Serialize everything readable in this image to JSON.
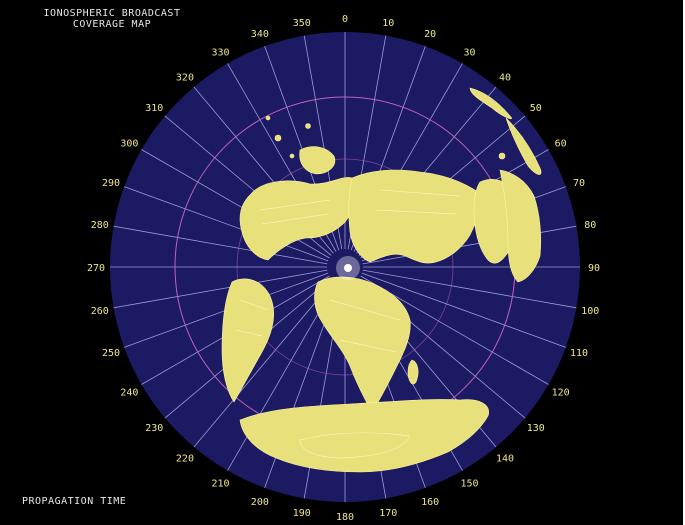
{
  "title_line1": "IONOSPHERIC BROADCAST",
  "title_line2": "COVERAGE MAP",
  "footer": "PROPAGATION TIME",
  "azimuth_labels": [
    {
      "deg": 0,
      "text": "0"
    },
    {
      "deg": 10,
      "text": "10"
    },
    {
      "deg": 20,
      "text": "20"
    },
    {
      "deg": 30,
      "text": "30"
    },
    {
      "deg": 40,
      "text": "40"
    },
    {
      "deg": 50,
      "text": "50"
    },
    {
      "deg": 60,
      "text": "60"
    },
    {
      "deg": 70,
      "text": "70"
    },
    {
      "deg": 80,
      "text": "80"
    },
    {
      "deg": 90,
      "text": "90"
    },
    {
      "deg": 100,
      "text": "100"
    },
    {
      "deg": 110,
      "text": "110"
    },
    {
      "deg": 120,
      "text": "120"
    },
    {
      "deg": 130,
      "text": "130"
    },
    {
      "deg": 140,
      "text": "140"
    },
    {
      "deg": 150,
      "text": "150"
    },
    {
      "deg": 160,
      "text": "160"
    },
    {
      "deg": 170,
      "text": "170"
    },
    {
      "deg": 180,
      "text": "180"
    },
    {
      "deg": 190,
      "text": "190"
    },
    {
      "deg": 200,
      "text": "200"
    },
    {
      "deg": 210,
      "text": "210"
    },
    {
      "deg": 220,
      "text": "220"
    },
    {
      "deg": 230,
      "text": "230"
    },
    {
      "deg": 240,
      "text": "240"
    },
    {
      "deg": 250,
      "text": "250"
    },
    {
      "deg": 260,
      "text": "260"
    },
    {
      "deg": 270,
      "text": "270"
    },
    {
      "deg": 280,
      "text": "280"
    },
    {
      "deg": 290,
      "text": "290"
    },
    {
      "deg": 300,
      "text": "300"
    },
    {
      "deg": 310,
      "text": "310"
    },
    {
      "deg": 320,
      "text": "320"
    },
    {
      "deg": 330,
      "text": "330"
    },
    {
      "deg": 340,
      "text": "340"
    },
    {
      "deg": 350,
      "text": "350"
    }
  ],
  "colors": {
    "ocean": "#1c1a63",
    "land": "#e8e07a",
    "grid": "#c8c8ff",
    "ring": "#c060c0",
    "labels": "#f0e68c"
  }
}
